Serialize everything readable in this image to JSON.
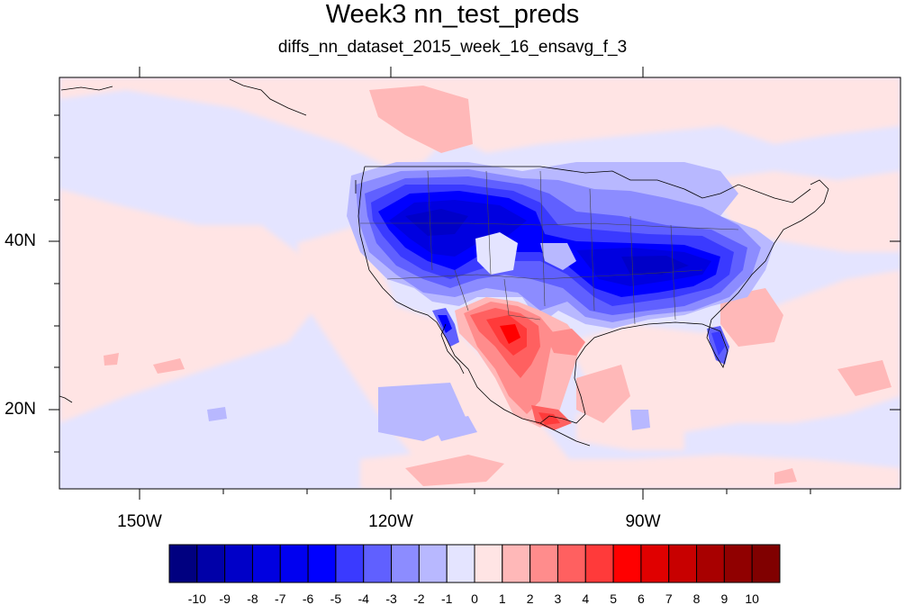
{
  "title": "Week3 nn_test_preds",
  "subtitle": "diffs_nn_dataset_2015_week_16_ensavg_f_3",
  "map": {
    "lon_range": [
      "160W",
      "60W"
    ],
    "lat_range": [
      "10N",
      "58N"
    ],
    "lat_labels": [
      {
        "value": 40,
        "label": "40N"
      },
      {
        "value": 20,
        "label": "20N"
      }
    ],
    "lon_labels": [
      {
        "value": -150,
        "label": "150W"
      },
      {
        "value": -120,
        "label": "120W"
      },
      {
        "value": -90,
        "label": "90W"
      }
    ],
    "background_anomaly": "-1"
  },
  "colorbar": {
    "labels": [
      "-10",
      "-9",
      "-8",
      "-7",
      "-6",
      "-5",
      "-4",
      "-3",
      "-2",
      "-1",
      "0",
      "1",
      "2",
      "3",
      "4",
      "5",
      "6",
      "7",
      "8",
      "9",
      "10"
    ],
    "colors": [
      "#000080",
      "#0000a8",
      "#0000c8",
      "#0000e0",
      "#0000f0",
      "#0000ff",
      "#3a3aff",
      "#6060ff",
      "#8c8cff",
      "#b8b8ff",
      "#e4e4ff",
      "#ffe4e4",
      "#ffb8b8",
      "#ff8c8c",
      "#ff6060",
      "#ff3a3a",
      "#ff0000",
      "#e00000",
      "#c80000",
      "#a80000",
      "#900000",
      "#800000"
    ]
  },
  "colors": {
    "ocean_weak_neg": "#e4e4ff",
    "weak_pos": "#ffe4e4",
    "negative_core": "#0000e0",
    "positive_core": "#ff3a3a"
  }
}
